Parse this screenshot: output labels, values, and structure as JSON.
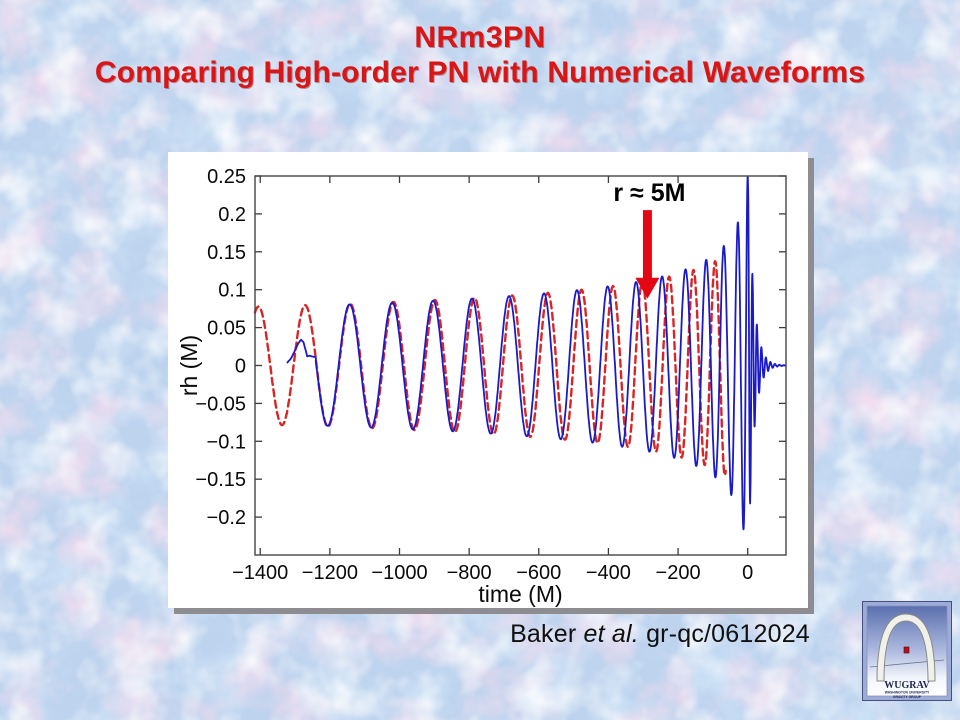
{
  "slide": {
    "title_line1": "NRm3PN",
    "title_line2": "Comparing High-order PN with Numerical Waveforms",
    "citation": {
      "pre": "Baker ",
      "italic": "et al.",
      "post": " gr-qc/0612024"
    },
    "logo": {
      "acronym": "WUGRAV",
      "line1": "WASHINGTON UNIVERSITY",
      "line2": "GRAVITY GROUP"
    },
    "colors": {
      "title_red": "#d91515",
      "panel_shadow": "#8d8d91",
      "arrow_red": "#e30613"
    }
  },
  "chart_data": {
    "type": "line",
    "title": "",
    "xlabel": "time (M)",
    "ylabel": "rh (M)",
    "xlim": [
      -1415,
      110
    ],
    "ylim": [
      -0.25,
      0.25
    ],
    "grid": false,
    "legend": "none",
    "xticks": [
      {
        "v": -1400,
        "label": "−1400"
      },
      {
        "v": -1200,
        "label": "−1200"
      },
      {
        "v": -1000,
        "label": "−1000"
      },
      {
        "v": -800,
        "label": "−800"
      },
      {
        "v": -600,
        "label": "−600"
      },
      {
        "v": -400,
        "label": "−400"
      },
      {
        "v": -200,
        "label": "−200"
      },
      {
        "v": 0,
        "label": "0"
      }
    ],
    "yticks": [
      {
        "v": 0.25,
        "label": "0.25"
      },
      {
        "v": 0.2,
        "label": "0.2"
      },
      {
        "v": 0.15,
        "label": "0.15"
      },
      {
        "v": 0.1,
        "label": "0.1"
      },
      {
        "v": 0.05,
        "label": "0.05"
      },
      {
        "v": 0,
        "label": "0"
      },
      {
        "v": -0.05,
        "label": "−0.05"
      },
      {
        "v": -0.1,
        "label": "−0.1"
      },
      {
        "v": -0.15,
        "label": "−0.15"
      },
      {
        "v": -0.2,
        "label": "−0.2"
      }
    ],
    "annotation": {
      "text": "r ≈ 5M",
      "t": -288,
      "tip_v": 0.088,
      "tail_v": 0.205,
      "color": "#e30613"
    },
    "series": [
      {
        "name": "red-dashed-waveform",
        "style": "dashed",
        "color": "#d82525",
        "model": "newtonian_chirp",
        "t_start": -1415,
        "t_end": -63,
        "t_coalescence": 55,
        "amp_coeff": 0.48,
        "amp_exp": -0.25,
        "cycles_coeff": 0.18,
        "peak_align_t": -1271
      },
      {
        "name": "blue-solid-waveform",
        "style": "solid",
        "color": "#1a1ac8",
        "model": "newtonian_chirp_with_ringdown",
        "t_start": -1322,
        "t_end": 108,
        "t_coalescence": 10,
        "amp_coeff": 0.47,
        "amp_exp": -0.25,
        "cycles_coeff": 0.18,
        "peak_align_t": -1271,
        "amp_cap": 0.25,
        "ringdown_start": 2,
        "ringdown_tau": 16,
        "ringdown_freq_boost": 1.5,
        "junk_points": [
          [
            -1322,
            0.004
          ],
          [
            -1312,
            0.009
          ],
          [
            -1301,
            0.019
          ],
          [
            -1291,
            0.029
          ],
          [
            -1283,
            0.034
          ],
          [
            -1276,
            0.031
          ],
          [
            -1270,
            0.021
          ],
          [
            -1265,
            0.012
          ],
          [
            -1258,
            0.013
          ],
          [
            -1252,
            0.012
          ],
          [
            -1246,
            0.0115
          ],
          [
            -1240,
            0.011
          ]
        ]
      }
    ]
  }
}
